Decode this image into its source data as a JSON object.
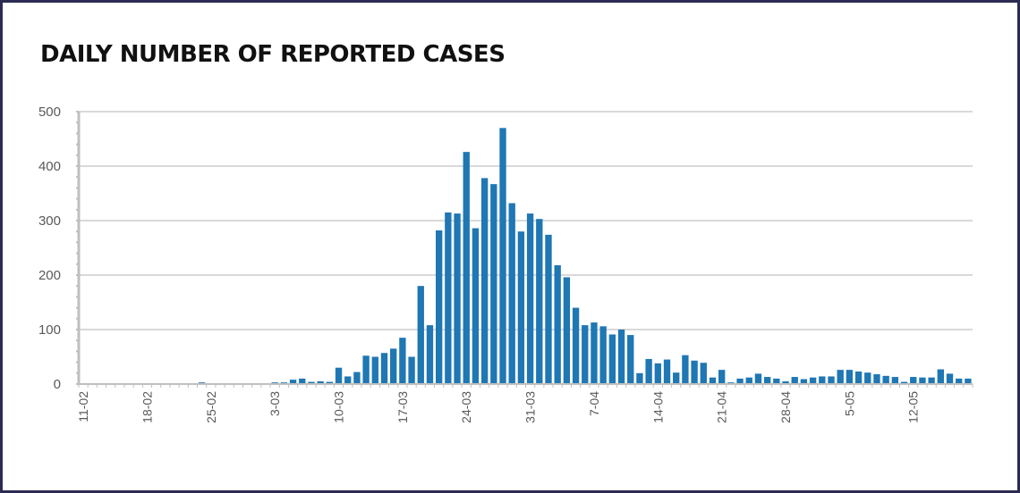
{
  "chart_data": {
    "type": "bar",
    "title": "DAILY NUMBER OF REPORTED CASES",
    "xlabel": "",
    "ylabel": "",
    "ylim": [
      0,
      500
    ],
    "yticks": [
      0,
      100,
      200,
      300,
      400,
      500
    ],
    "grid": true,
    "bar_color": "#1f77b4",
    "x_tick_labels": [
      "11-02",
      "18-02",
      "25-02",
      "3-03",
      "10-03",
      "17-03",
      "24-03",
      "31-03",
      "7-04",
      "14-04",
      "21-04",
      "28-04",
      "5-05",
      "12-05"
    ],
    "x_tick_every_n_days": 7,
    "categories": [
      "11-02",
      "12-02",
      "13-02",
      "14-02",
      "15-02",
      "16-02",
      "17-02",
      "18-02",
      "19-02",
      "20-02",
      "21-02",
      "22-02",
      "23-02",
      "24-02",
      "25-02",
      "26-02",
      "27-02",
      "28-02",
      "29-02",
      "1-03",
      "2-03",
      "3-03",
      "4-03",
      "5-03",
      "6-03",
      "7-03",
      "8-03",
      "9-03",
      "10-03",
      "11-03",
      "12-03",
      "13-03",
      "14-03",
      "15-03",
      "16-03",
      "17-03",
      "18-03",
      "19-03",
      "20-03",
      "21-03",
      "22-03",
      "23-03",
      "24-03",
      "25-03",
      "26-03",
      "27-03",
      "28-03",
      "29-03",
      "30-03",
      "31-03",
      "1-04",
      "2-04",
      "3-04",
      "4-04",
      "5-04",
      "6-04",
      "7-04",
      "8-04",
      "9-04",
      "10-04",
      "11-04",
      "12-04",
      "13-04",
      "14-04",
      "15-04",
      "16-04",
      "17-04",
      "18-04",
      "19-04",
      "20-04",
      "21-04",
      "22-04",
      "23-04",
      "24-04",
      "25-04",
      "26-04",
      "27-04",
      "28-04",
      "29-04",
      "30-04",
      "1-05",
      "2-05",
      "3-05",
      "4-05",
      "5-05",
      "6-05",
      "7-05",
      "8-05",
      "9-05",
      "10-05",
      "11-05",
      "12-05",
      "13-05",
      "14-05",
      "15-05",
      "16-05",
      "17-05",
      "18-05"
    ],
    "values": [
      0,
      0,
      0,
      0,
      0,
      0,
      0,
      0,
      0,
      0,
      0,
      0,
      0,
      3,
      0,
      0,
      0,
      0,
      0,
      0,
      0,
      3,
      3,
      8,
      10,
      4,
      5,
      4,
      30,
      14,
      22,
      52,
      50,
      57,
      65,
      85,
      50,
      180,
      108,
      282,
      315,
      313,
      426,
      286,
      378,
      367,
      470,
      332,
      280,
      313,
      303,
      274,
      218,
      196,
      140,
      108,
      113,
      106,
      91,
      100,
      90,
      20,
      46,
      38,
      45,
      21,
      53,
      43,
      39,
      12,
      26,
      3,
      10,
      12,
      19,
      13,
      10,
      5,
      13,
      9,
      12,
      14,
      14,
      26,
      26,
      23,
      21,
      18,
      15,
      13,
      4,
      13,
      12,
      12,
      27,
      19,
      10,
      10
    ]
  }
}
